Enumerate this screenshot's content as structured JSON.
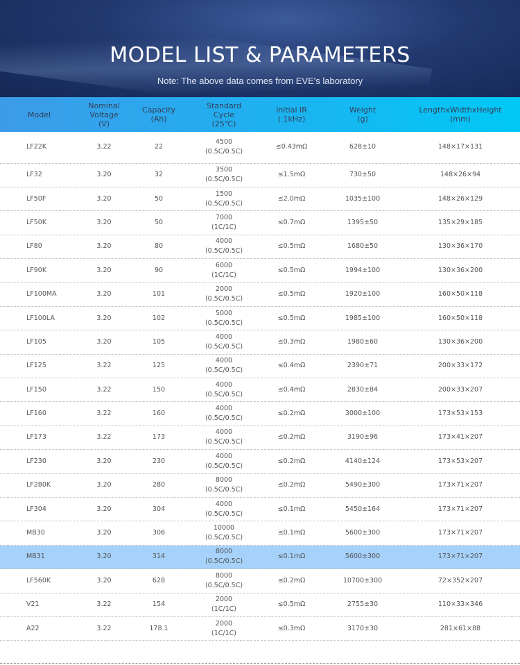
{
  "header": {
    "title": "MODEL LIST & PARAMETERS",
    "note": "Note: The above data comes from EVE's laboratory"
  },
  "table": {
    "columns": [
      [
        "Model"
      ],
      [
        "Nominal",
        "Voltage",
        "(V)"
      ],
      [
        "Capacity",
        "(Ah)"
      ],
      [
        "Standard",
        "Cycle",
        "(25℃)"
      ],
      [
        "Initial IR",
        "( 1kHz)"
      ],
      [
        "Weight",
        "(g)"
      ],
      [
        "LengthxWidthxHeight",
        "(mm)"
      ]
    ],
    "highlight_color": "#a6d1fa",
    "rows": [
      [
        "LF22K",
        "3.22",
        "22",
        "4500",
        "(0.5C/0.5C)",
        "≤0.43mΩ",
        "628±10",
        "148×17×131"
      ],
      [
        "LF32",
        "3.20",
        "32",
        "3500",
        "(0.5C/0.5C)",
        "≤1.5mΩ",
        "730±50",
        "148×26×94"
      ],
      [
        "LF50F",
        "3.20",
        "50",
        "1500",
        "(0.5C/0.5C)",
        "≤2.0mΩ",
        "1035±100",
        "148×26×129"
      ],
      [
        "LF50K",
        "3.20",
        "50",
        "7000",
        "(1C/1C)",
        "≤0.7mΩ",
        "1395±50",
        "135×29×185"
      ],
      [
        "LF80",
        "3.20",
        "80",
        "4000",
        "(0.5C/0.5C)",
        "≤0.5mΩ",
        "1680±50",
        "130×36×170"
      ],
      [
        "LF90K",
        "3.20",
        "90",
        "6000",
        "(1C/1C)",
        "≤0.5mΩ",
        "1994±100",
        "130×36×200"
      ],
      [
        "LF100MA",
        "3.20",
        "101",
        "2000",
        "(0.5C/0.5C)",
        "≤0.5mΩ",
        "1920±100",
        "160×50×118"
      ],
      [
        "LF100LA",
        "3.20",
        "102",
        "5000",
        "(0.5C/0.5C)",
        "≤0.5mΩ",
        "1985±100",
        "160×50×118"
      ],
      [
        "LF105",
        "3.20",
        "105",
        "4000",
        "(0.5C/0.5C)",
        "≤0.3mΩ",
        "1980±60",
        "130×36×200"
      ],
      [
        "LF125",
        "3.22",
        "125",
        "4000",
        "(0.5C/0.5C)",
        "≤0.4mΩ",
        "2390±71",
        "200×33×172"
      ],
      [
        "LF150",
        "3.22",
        "150",
        "4000",
        "(0.5C/0.5C)",
        "≤0.4mΩ",
        "2830±84",
        "200×33×207"
      ],
      [
        "LF160",
        "3.22",
        "160",
        "4000",
        "(0.5C/0.5C)",
        "≤0.2mΩ",
        "3000±100",
        "173×53×153"
      ],
      [
        "LF173",
        "3.22",
        "173",
        "4000",
        "(0.5C/0.5C)",
        "≤0.2mΩ",
        "3190±96",
        "173×41×207"
      ],
      [
        "LF230",
        "3.20",
        "230",
        "4000",
        "(0.5C/0.5C)",
        "≤0.2mΩ",
        "4140±124",
        "173×53×207"
      ],
      [
        "LF280K",
        "3.20",
        "280",
        "8000",
        "(0.5C/0.5C)",
        "≤0.2mΩ",
        "5490±300",
        "173×71×207"
      ],
      [
        "LF304",
        "3.20",
        "304",
        "4000",
        "(0.5C/0.5C)",
        "≤0.1mΩ",
        "5450±164",
        "173×71×207"
      ],
      [
        "MB30",
        "3.20",
        "306",
        "10000",
        "(0.5C/0.5C)",
        "≤0.1mΩ",
        "5600±300",
        "173×71×207"
      ],
      [
        "MB31",
        "3.20",
        "314",
        "8000",
        "(0.5C/0.5C)",
        "≤0.1mΩ",
        "5600±300",
        "173×71×207"
      ],
      [
        "LF560K",
        "3.20",
        "628",
        "8000",
        "(0.5C/0.5C)",
        "≤0.2mΩ",
        "10700±300",
        "72×352×207"
      ],
      [
        "V21",
        "3.22",
        "154",
        "2000",
        "(1C/1C)",
        "≤0.5mΩ",
        "2755±30",
        "110×33×346"
      ],
      [
        "A22",
        "3.22",
        "178.1",
        "2000",
        "(1C/1C)",
        "≤0.3mΩ",
        "3170±30",
        "281×61×88"
      ]
    ],
    "highlighted_row": "MB31"
  }
}
